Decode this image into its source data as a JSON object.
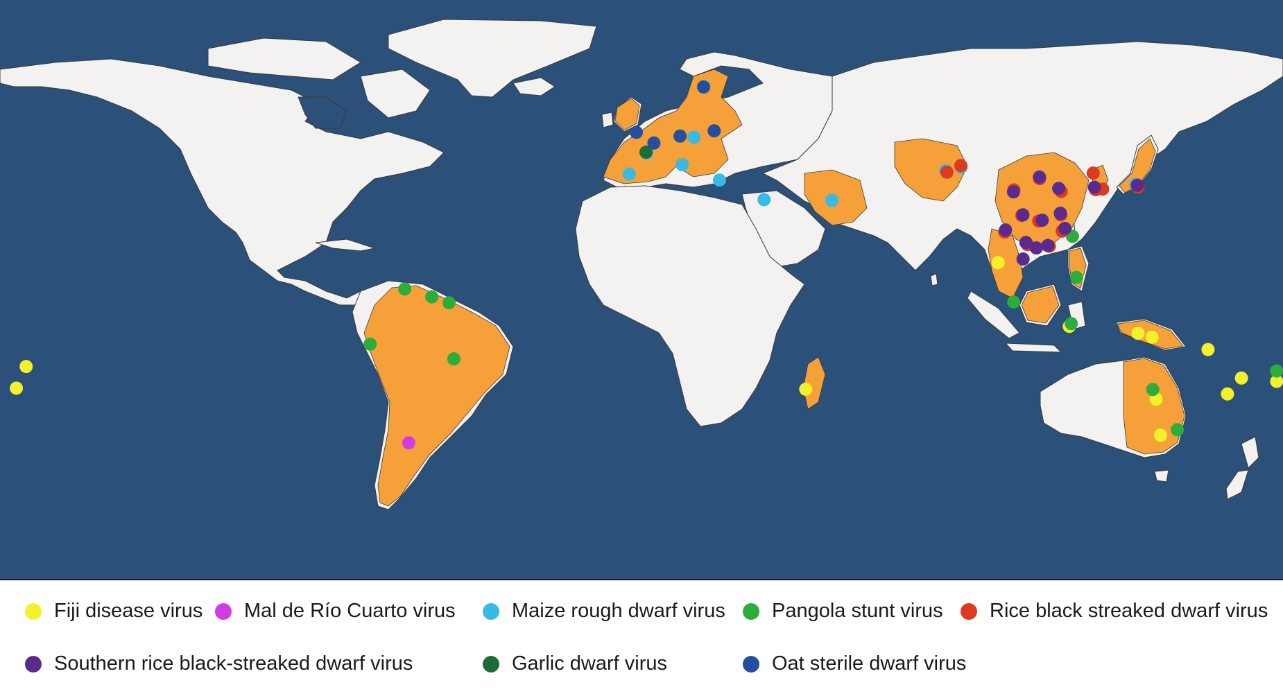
{
  "colors": {
    "ocean": "#2b5079",
    "land": "#f3f2f0",
    "border": "#3a3a3a",
    "affected": "#f6a03a",
    "fiji": "#f4f12a",
    "mal": "#d23be6",
    "maize": "#39b9e6",
    "pangola": "#2aad3a",
    "rice": "#dc3a21",
    "southern": "#5a2a8e",
    "garlic": "#1e6b3a",
    "oat": "#234f9e"
  },
  "legend": {
    "fiji": "Fiji disease virus",
    "mal": "Mal de Río Cuarto virus",
    "maize": "Maize rough dwarf virus",
    "pangola": "Pangola stunt virus",
    "rice": "Rice black streaked dwarf virus",
    "southern": "Southern rice black-streaked dwarf virus",
    "garlic": "Garlic dwarf virus",
    "oat": "Oat sterile dwarf virus"
  },
  "affected_regions": [
    "Europe",
    "Turkey",
    "Iran",
    "Pakistan",
    "China",
    "Korea",
    "Japan",
    "Southeast Asia",
    "Papua New Guinea",
    "South America (Brazil, Peru, Argentina, Venezuela)",
    "Madagascar",
    "Eastern Australia"
  ],
  "occurrences": {
    "fiji": [
      "Pacific islands (west)",
      "Madagascar",
      "Thailand",
      "Philippines",
      "Indonesia",
      "Papua New Guinea",
      "Queensland",
      "New South Wales",
      "Pacific islands (east)"
    ],
    "mal": [
      "Argentina"
    ],
    "maize": [
      "Spain",
      "France",
      "Italy",
      "Czechia",
      "Sweden",
      "Greece",
      "Israel",
      "Iran",
      "Pakistan",
      "Japan"
    ],
    "pangola": [
      "Venezuela",
      "Guyana",
      "Suriname",
      "Peru",
      "Brazil",
      "Taiwan",
      "Philippines",
      "Malaysia",
      "Indonesia",
      "Australia",
      "Fiji"
    ],
    "rice": [
      "Pakistan",
      "China",
      "Korea",
      "Japan"
    ],
    "southern": [
      "China",
      "Vietnam",
      "Japan"
    ],
    "garlic": [
      "France"
    ],
    "oat": [
      "UK",
      "Netherlands",
      "Germany",
      "Poland",
      "Sweden"
    ]
  }
}
